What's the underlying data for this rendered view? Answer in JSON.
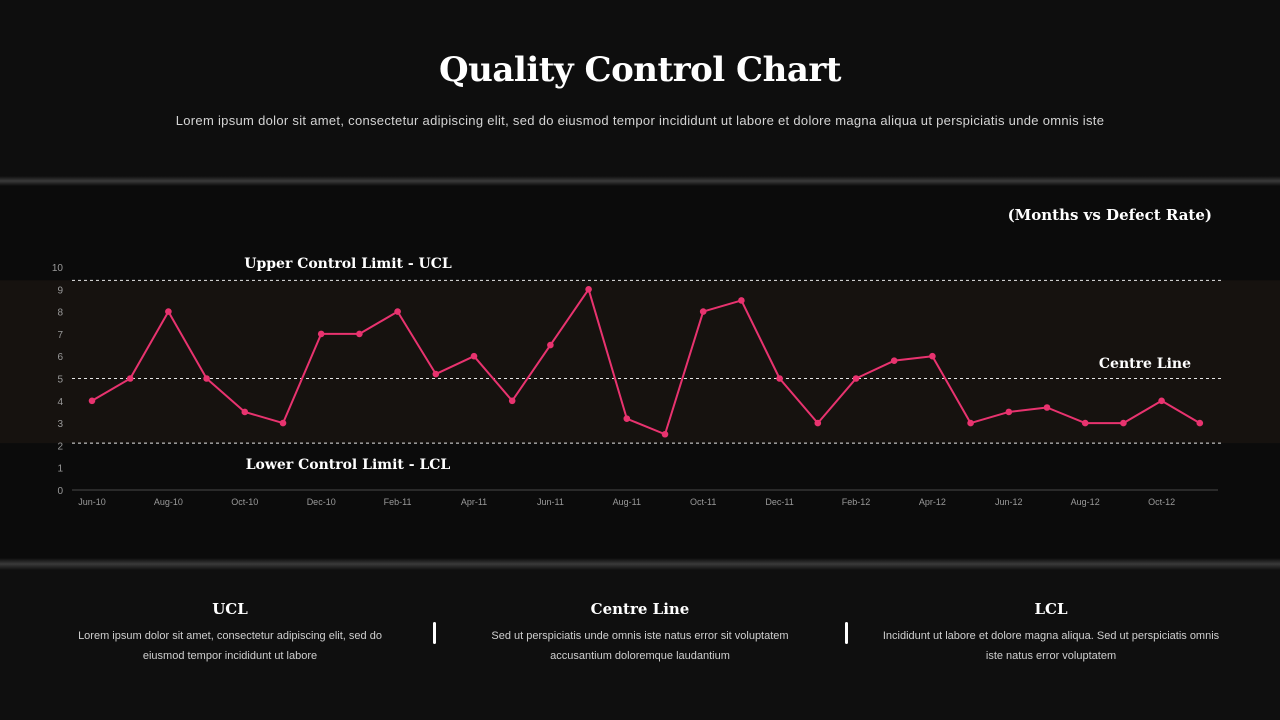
{
  "header": {
    "title": "Quality Control Chart",
    "subtitle": "Lorem ipsum dolor sit amet, consectetur adipiscing elit, sed do eiusmod tempor incididunt ut labore et dolore magna aliqua ut perspiciatis unde omnis iste"
  },
  "chart_note": "(Months vs Defect Rate)",
  "chart_data": {
    "type": "line",
    "title": "",
    "xlabel": "",
    "ylabel": "",
    "ylim": [
      0,
      10
    ],
    "yticks": [
      0,
      1,
      2,
      3,
      4,
      5,
      6,
      7,
      8,
      9,
      10
    ],
    "x": [
      "Jun-10",
      "Jul-10",
      "Aug-10",
      "Sep-10",
      "Oct-10",
      "Nov-10",
      "Dec-10",
      "Jan-11",
      "Feb-11",
      "Mar-11",
      "Apr-11",
      "May-11",
      "Jun-11",
      "Jul-11",
      "Aug-11",
      "Sep-11",
      "Oct-11",
      "Nov-11",
      "Dec-11",
      "Jan-12",
      "Feb-12",
      "Mar-12",
      "Apr-12",
      "May-12",
      "Jun-12",
      "Jul-12",
      "Aug-12",
      "Sep-12",
      "Oct-12",
      "Nov-12"
    ],
    "xtick_labels": [
      "Jun-10",
      "Aug-10",
      "Oct-10",
      "Dec-10",
      "Feb-11",
      "Apr-11",
      "Jun-11",
      "Aug-11",
      "Oct-11",
      "Dec-11",
      "Feb-12",
      "Apr-12",
      "Jun-12",
      "Aug-12",
      "Oct-12"
    ],
    "series": [
      {
        "values": [
          4,
          5,
          8,
          5,
          3.5,
          3,
          7,
          7,
          8,
          5.2,
          6,
          4,
          6.5,
          9,
          3.2,
          2.5,
          8,
          8.5,
          5,
          3,
          5,
          5.8,
          6,
          3,
          3.5,
          3.7,
          3,
          3,
          4,
          3
        ],
        "color": "#e8336f"
      }
    ],
    "control_limits": {
      "ucl": {
        "value": 9.4,
        "label": "Upper Control Limit - UCL"
      },
      "centre": {
        "value": 5,
        "label": "Centre Line"
      },
      "lcl": {
        "value": 2.1,
        "label": "Lower Control Limit - LCL"
      }
    },
    "grid": false,
    "legend": "none"
  },
  "footer": {
    "columns": [
      {
        "title": "UCL",
        "text": "Lorem ipsum dolor sit amet, consectetur adipiscing elit, sed do eiusmod tempor incididunt ut labore"
      },
      {
        "title": "Centre Line",
        "text": "Sed ut perspiciatis unde omnis iste natus error sit voluptatem accusantium doloremque laudantium"
      },
      {
        "title": "LCL",
        "text": "Incididunt ut labore et dolore magna aliqua. Sed ut perspiciatis omnis iste natus error voluptatem"
      }
    ]
  },
  "colors": {
    "background": "#0f0f0f",
    "line": "#e8336f",
    "control_band": "#16120f",
    "limit_line": "#e6e6e6"
  }
}
